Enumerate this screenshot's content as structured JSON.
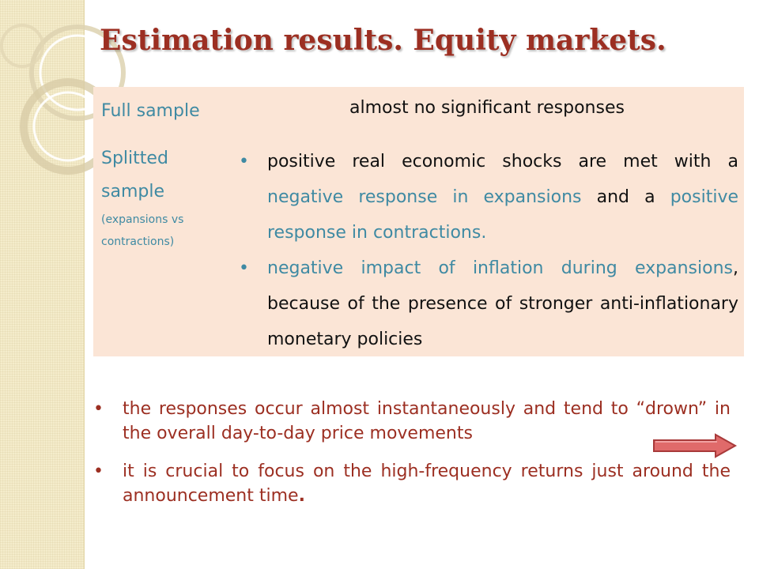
{
  "slide": {
    "title": "Estimation results. Equity markets."
  },
  "table": {
    "full_sample": {
      "label": "Full sample",
      "value": "almost no significant responses"
    },
    "splitted_sample": {
      "label_line1": "Splitted",
      "label_line2": "sample",
      "label_line3": "(expansions vs",
      "label_line4": "contractions)",
      "bullet1": {
        "part1": "positive real economic shocks are met with a",
        "part2": "negative response in expansions",
        "part3": "and a",
        "part4": "positive response in contractions."
      },
      "bullet2": {
        "part1": "negative impact of inflation during expansions",
        "part2": ", because of the presence of stronger anti-inflationary monetary policies"
      }
    }
  },
  "bullets": {
    "b1": "the responses occur almost instantaneously and tend to “drown” in the overall day-to-day price movements",
    "b2_text": "it is crucial to focus on the high-frequency returns just around the announcement time",
    "b2_end": "."
  },
  "icons": {
    "bullet": "•",
    "arrow": "right-arrow-icon"
  },
  "colors": {
    "title": "#9c2f22",
    "accent_teal": "#3f8aa3",
    "table_bg": "#fbe5d6",
    "bottom_text": "#9c2f22",
    "arrow_fill": "#e06a6a",
    "left_strip": "#f4eccb"
  }
}
